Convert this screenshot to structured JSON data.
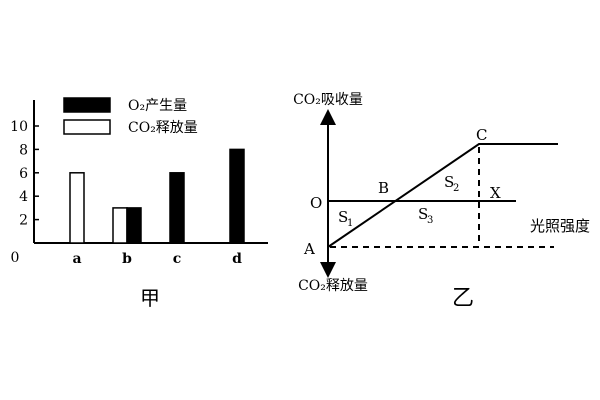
{
  "chart_data": [
    {
      "type": "bar",
      "caption": "甲",
      "categories": [
        "a",
        "b",
        "c",
        "d"
      ],
      "series": [
        {
          "name": "O₂产生量",
          "values": [
            0,
            3,
            6,
            8
          ],
          "color": "#000000"
        },
        {
          "name": "CO₂释放量",
          "values": [
            6,
            3,
            0,
            0
          ],
          "color": "#ffffff"
        }
      ],
      "yticks": [
        "2",
        "4",
        "6",
        "8",
        "10"
      ],
      "origin_label": "0",
      "ylim": [
        0,
        12
      ],
      "legend_position": "top-right"
    },
    {
      "type": "line",
      "caption": "乙",
      "ylabel_top": "CO₂吸收量",
      "ylabel_bottom": "CO₂释放量",
      "xlabel": "光照强度",
      "points": {
        "O": "O",
        "A": "A",
        "B": "B",
        "C": "C",
        "X": "X"
      },
      "regions": {
        "S1": "S",
        "S1_sub": "1",
        "S2": "S",
        "S2_sub": "2",
        "S3": "S",
        "S3_sub": "3"
      },
      "description_points": [
        {
          "name": "A",
          "x": 0,
          "y": -1
        },
        {
          "name": "B",
          "x": 1,
          "y": 0
        },
        {
          "name": "C",
          "x": 2.6,
          "y": 1.6
        }
      ]
    }
  ]
}
